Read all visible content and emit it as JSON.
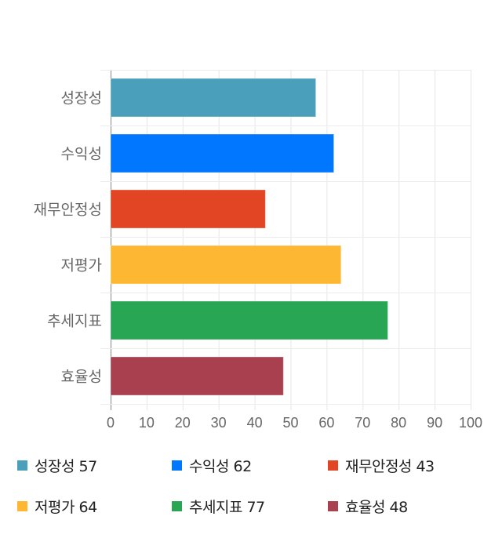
{
  "chart_data": {
    "type": "bar",
    "orientation": "horizontal",
    "categories": [
      "성장성",
      "수익성",
      "재무안정성",
      "저평가",
      "추세지표",
      "효율성"
    ],
    "values": [
      57,
      62,
      43,
      64,
      77,
      48
    ],
    "colors": [
      "#4aa0ba",
      "#0077fe",
      "#e24523",
      "#feb733",
      "#28a654",
      "#a8404f"
    ],
    "xlim": [
      0,
      100
    ],
    "xticks": [
      "0",
      "10",
      "20",
      "30",
      "40",
      "50",
      "60",
      "70",
      "80",
      "90",
      "100"
    ],
    "grid": true,
    "legend_position": "bottom",
    "legend": [
      {
        "label": "성장성",
        "value": "57"
      },
      {
        "label": "수익성",
        "value": "62"
      },
      {
        "label": "재무안정성",
        "value": "43"
      },
      {
        "label": "저평가",
        "value": "64"
      },
      {
        "label": "추세지표",
        "value": "77"
      },
      {
        "label": "효율성",
        "value": "48"
      }
    ]
  }
}
